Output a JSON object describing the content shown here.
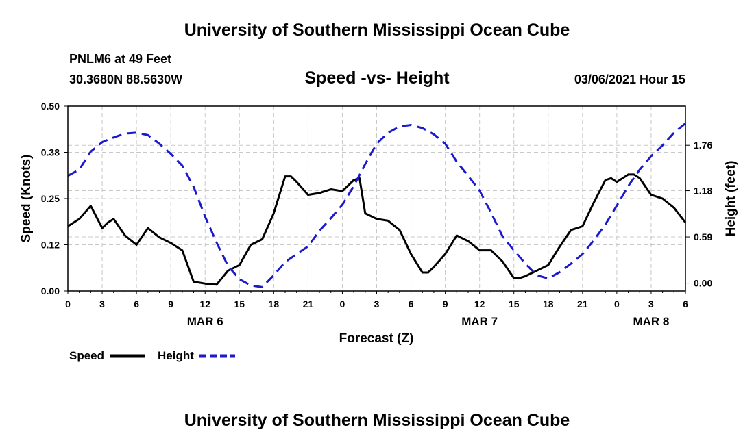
{
  "header": {
    "title": "University of Southern Mississippi Ocean Cube",
    "station": "PNLM6 at 49 Feet",
    "coords": "30.3680N 88.5630W",
    "datetime": "03/06/2021 Hour 15"
  },
  "footer": {
    "title": "University of Southern Mississippi Ocean Cube"
  },
  "colors": {
    "speed": "#000000",
    "height": "#1a1acc",
    "grid": "#c8c8c8"
  },
  "chart_data": {
    "type": "line",
    "title": "Speed -vs- Height",
    "xlabel": "Forecast (Z)",
    "ylabel": "Speed (Knots)",
    "y2label": "Height (feet)",
    "xlim": [
      0,
      54
    ],
    "ylim": [
      0,
      0.5
    ],
    "y2lim": [
      -0.1,
      2.26
    ],
    "x_ticks": [
      {
        "x": 0,
        "label": "0"
      },
      {
        "x": 3,
        "label": "3"
      },
      {
        "x": 6,
        "label": "6"
      },
      {
        "x": 9,
        "label": "9"
      },
      {
        "x": 12,
        "label": "12"
      },
      {
        "x": 15,
        "label": "15"
      },
      {
        "x": 18,
        "label": "18"
      },
      {
        "x": 21,
        "label": "21"
      },
      {
        "x": 24,
        "label": "0"
      },
      {
        "x": 27,
        "label": "3"
      },
      {
        "x": 30,
        "label": "6"
      },
      {
        "x": 33,
        "label": "9"
      },
      {
        "x": 36,
        "label": "12"
      },
      {
        "x": 39,
        "label": "15"
      },
      {
        "x": 42,
        "label": "18"
      },
      {
        "x": 45,
        "label": "21"
      },
      {
        "x": 48,
        "label": "0"
      },
      {
        "x": 51,
        "label": "3"
      },
      {
        "x": 54,
        "label": "6"
      }
    ],
    "date_labels": [
      {
        "x": 12,
        "label": "MAR 6"
      },
      {
        "x": 36,
        "label": "MAR 7"
      },
      {
        "x": 51,
        "label": "MAR 8"
      }
    ],
    "y_ticks": [
      {
        "y": 0.0,
        "label": "0.00"
      },
      {
        "y": 0.125,
        "label": "0.12"
      },
      {
        "y": 0.25,
        "label": "0.25"
      },
      {
        "y": 0.375,
        "label": "0.38"
      },
      {
        "y": 0.5,
        "label": "0.50"
      }
    ],
    "y2_ticks": [
      {
        "y": 0.0,
        "label": "0.00"
      },
      {
        "y": 0.59,
        "label": "0.59"
      },
      {
        "y": 1.18,
        "label": "1.18"
      },
      {
        "y": 1.76,
        "label": "1.76"
      }
    ],
    "legend": [
      {
        "name": "Speed",
        "style": "solid"
      },
      {
        "name": "Height",
        "style": "dashed"
      }
    ],
    "series": [
      {
        "name": "Speed",
        "axis": "left",
        "x": [
          0,
          1,
          2,
          3,
          3.5,
          4,
          5,
          6,
          7,
          8,
          9,
          10,
          11,
          12,
          13,
          14,
          15,
          16,
          17,
          18,
          19,
          19.5,
          20,
          21,
          22,
          23,
          24,
          25,
          25.5,
          26,
          27,
          28,
          29,
          30,
          31,
          31.5,
          32,
          33,
          34,
          35,
          36,
          37,
          38,
          39,
          39.5,
          40,
          41,
          42,
          43,
          44,
          45,
          46,
          47,
          47.5,
          48,
          49,
          49.5,
          50,
          51,
          52,
          53,
          54
        ],
        "values": [
          0.175,
          0.195,
          0.23,
          0.17,
          0.185,
          0.195,
          0.15,
          0.125,
          0.17,
          0.145,
          0.13,
          0.11,
          0.025,
          0.02,
          0.017,
          0.055,
          0.07,
          0.125,
          0.14,
          0.21,
          0.31,
          0.31,
          0.295,
          0.26,
          0.265,
          0.275,
          0.27,
          0.3,
          0.305,
          0.21,
          0.195,
          0.19,
          0.165,
          0.1,
          0.05,
          0.05,
          0.065,
          0.1,
          0.15,
          0.135,
          0.11,
          0.11,
          0.08,
          0.035,
          0.035,
          0.04,
          0.055,
          0.07,
          0.12,
          0.165,
          0.175,
          0.24,
          0.3,
          0.305,
          0.295,
          0.315,
          0.315,
          0.305,
          0.26,
          0.25,
          0.225,
          0.185
        ]
      },
      {
        "name": "Height",
        "axis": "right",
        "x": [
          0,
          1,
          2,
          3,
          4,
          5,
          6,
          7,
          8,
          9,
          10,
          11,
          12,
          13,
          14,
          15,
          16,
          17,
          18,
          19,
          20,
          21,
          22,
          23,
          24,
          25,
          26,
          27,
          28,
          29,
          30,
          31,
          32,
          33,
          34,
          35,
          36,
          37,
          38,
          39,
          40,
          41,
          42,
          43,
          44,
          45,
          46,
          47,
          48,
          49,
          50,
          51,
          52,
          53,
          54
        ],
        "values": [
          1.37,
          1.45,
          1.68,
          1.8,
          1.86,
          1.91,
          1.92,
          1.89,
          1.78,
          1.65,
          1.5,
          1.23,
          0.85,
          0.52,
          0.22,
          0.05,
          -0.03,
          -0.05,
          0.1,
          0.27,
          0.37,
          0.47,
          0.67,
          0.83,
          1.0,
          1.24,
          1.52,
          1.78,
          1.92,
          2.0,
          2.02,
          1.98,
          1.9,
          1.78,
          1.55,
          1.37,
          1.18,
          0.9,
          0.6,
          0.42,
          0.25,
          0.1,
          0.06,
          0.14,
          0.25,
          0.37,
          0.55,
          0.75,
          0.99,
          1.24,
          1.45,
          1.62,
          1.76,
          1.92,
          2.04
        ]
      }
    ]
  }
}
